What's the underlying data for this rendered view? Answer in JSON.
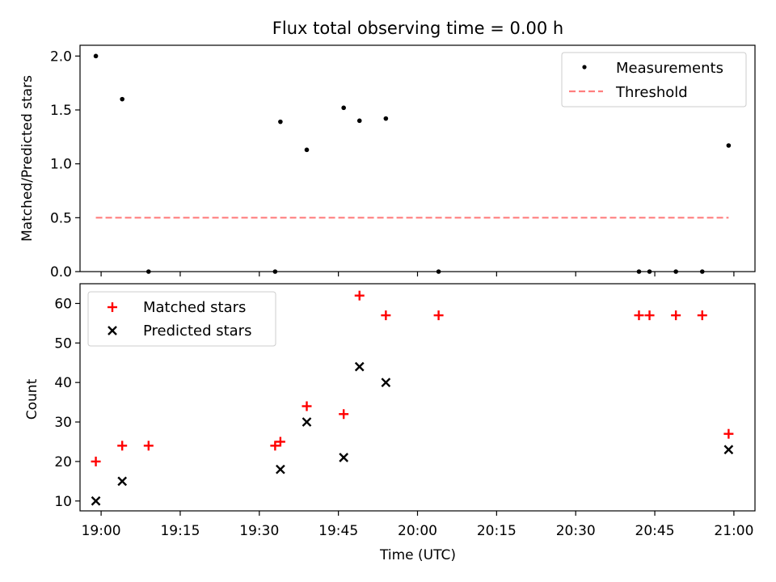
{
  "figure": {
    "title": "Flux total observing time = 0.00 h"
  },
  "chart_data": [
    {
      "type": "scatter",
      "ylabel": "Matched/Predicted stars",
      "xlim": [
        "18:56",
        "21:04"
      ],
      "ylim": [
        0,
        2.1
      ],
      "yticks": [
        "0.0",
        "0.5",
        "1.0",
        "1.5",
        "2.0"
      ],
      "grid": false,
      "legend": {
        "position": "top-right",
        "entries": [
          "Measurements",
          "Threshold"
        ]
      },
      "series": [
        {
          "name": "Measurements",
          "type": "scatter",
          "marker": "dot",
          "color": "#000000",
          "points": [
            [
              "18:59",
              2.0
            ],
            [
              "19:04",
              1.6
            ],
            [
              "19:09",
              0.0
            ],
            [
              "19:33",
              0.0
            ],
            [
              "19:34",
              1.39
            ],
            [
              "19:39",
              1.13
            ],
            [
              "19:46",
              1.52
            ],
            [
              "19:49",
              1.4
            ],
            [
              "19:54",
              1.42
            ],
            [
              "20:04",
              0.0
            ],
            [
              "20:42",
              0.0
            ],
            [
              "20:44",
              0.0
            ],
            [
              "20:49",
              0.0
            ],
            [
              "20:54",
              0.0
            ],
            [
              "20:59",
              1.17
            ]
          ]
        },
        {
          "name": "Threshold",
          "type": "line",
          "style": "dashed",
          "color": "#ff7f7f",
          "points": [
            [
              "18:59",
              0.5
            ],
            [
              "20:59",
              0.5
            ]
          ]
        }
      ]
    },
    {
      "type": "scatter",
      "ylabel": "Count",
      "xlabel": "Time (UTC)",
      "xlim": [
        "18:56",
        "21:04"
      ],
      "ylim": [
        7.5,
        65
      ],
      "yticks": [
        "10",
        "20",
        "30",
        "40",
        "50",
        "60"
      ],
      "xticks": [
        "19:00",
        "19:15",
        "19:30",
        "19:45",
        "20:00",
        "20:15",
        "20:30",
        "20:45",
        "21:00"
      ],
      "grid": false,
      "legend": {
        "position": "top-left",
        "entries": [
          "Matched stars",
          "Predicted stars"
        ]
      },
      "series": [
        {
          "name": "Matched stars",
          "marker": "plus",
          "color": "#ff0000",
          "points": [
            [
              "18:59",
              20
            ],
            [
              "19:04",
              24
            ],
            [
              "19:09",
              24
            ],
            [
              "19:33",
              24
            ],
            [
              "19:34",
              25
            ],
            [
              "19:39",
              34
            ],
            [
              "19:46",
              32
            ],
            [
              "19:49",
              62
            ],
            [
              "19:54",
              57
            ],
            [
              "20:04",
              57
            ],
            [
              "20:42",
              57
            ],
            [
              "20:44",
              57
            ],
            [
              "20:49",
              57
            ],
            [
              "20:54",
              57
            ],
            [
              "20:59",
              27
            ]
          ]
        },
        {
          "name": "Predicted stars",
          "marker": "x",
          "color": "#000000",
          "points": [
            [
              "18:59",
              10
            ],
            [
              "19:04",
              15
            ],
            [
              "19:34",
              18
            ],
            [
              "19:39",
              30
            ],
            [
              "19:46",
              21
            ],
            [
              "19:49",
              44
            ],
            [
              "19:54",
              40
            ],
            [
              "20:59",
              23
            ]
          ]
        }
      ]
    }
  ]
}
